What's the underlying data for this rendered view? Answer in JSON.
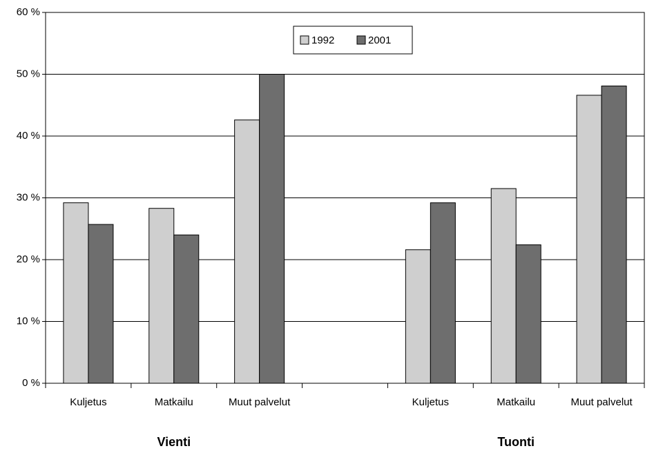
{
  "chart_data": {
    "type": "bar",
    "categories": [
      "Kuljetus",
      "Matkailu",
      "Muut palvelut",
      null,
      "Kuljetus",
      "Matkailu",
      "Muut palvelut"
    ],
    "group_labels": [
      "Vienti",
      "Tuonti"
    ],
    "series": [
      {
        "name": "1992",
        "color": "#cfcfcf",
        "values": [
          29.2,
          28.3,
          42.6,
          null,
          21.6,
          31.5,
          46.6
        ]
      },
      {
        "name": "2001",
        "color": "#6e6e6e",
        "values": [
          25.7,
          24.0,
          50.0,
          null,
          29.2,
          22.4,
          48.1
        ]
      }
    ],
    "ylim": [
      0,
      60
    ],
    "yticks": [
      {
        "value": 0,
        "label": "0 %"
      },
      {
        "value": 10,
        "label": "10 %"
      },
      {
        "value": 20,
        "label": "20 %"
      },
      {
        "value": 30,
        "label": "30 %"
      },
      {
        "value": 40,
        "label": "40 %"
      },
      {
        "value": 50,
        "label": "50 %"
      },
      {
        "value": 60,
        "label": "60 %"
      }
    ],
    "grid": true,
    "legend": "top"
  }
}
